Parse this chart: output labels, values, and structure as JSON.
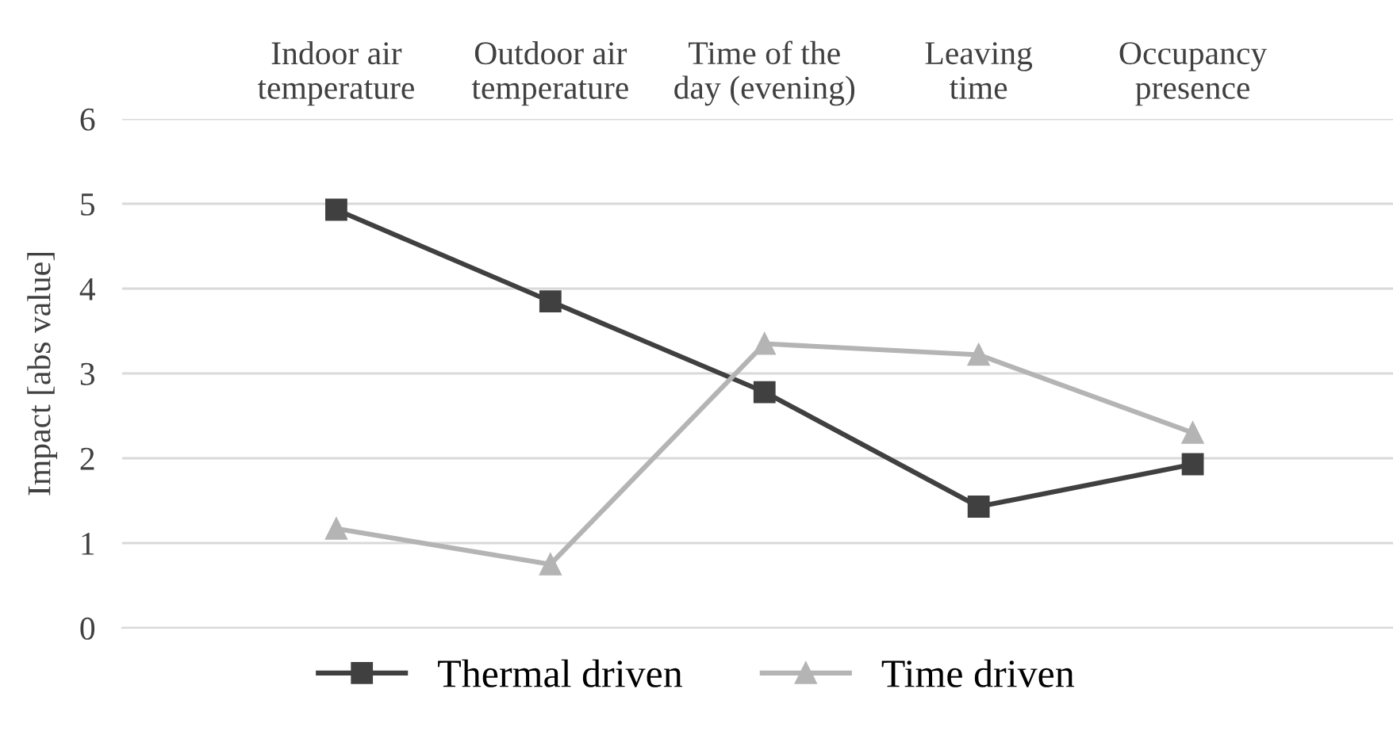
{
  "chart_data": {
    "type": "line",
    "ylabel": "Impact [abs value]",
    "categories": [
      "Indoor air\ntemperature",
      "Outdoor air\ntemperature",
      "Time of the\nday (evening)",
      "Leaving\ntime",
      "Occupancy\npresence"
    ],
    "series": [
      {
        "name": "Thermal driven",
        "color": "#404040",
        "marker": "square",
        "values": [
          4.93,
          3.85,
          2.78,
          1.43,
          1.93
        ]
      },
      {
        "name": "Time driven",
        "color": "#b4b4b4",
        "marker": "triangle",
        "values": [
          1.17,
          0.75,
          3.35,
          3.22,
          2.3
        ]
      }
    ],
    "ylim": [
      0,
      6
    ],
    "yticks": [
      0,
      1,
      2,
      3,
      4,
      5,
      6
    ],
    "grid": "y",
    "legend": "bottom"
  }
}
